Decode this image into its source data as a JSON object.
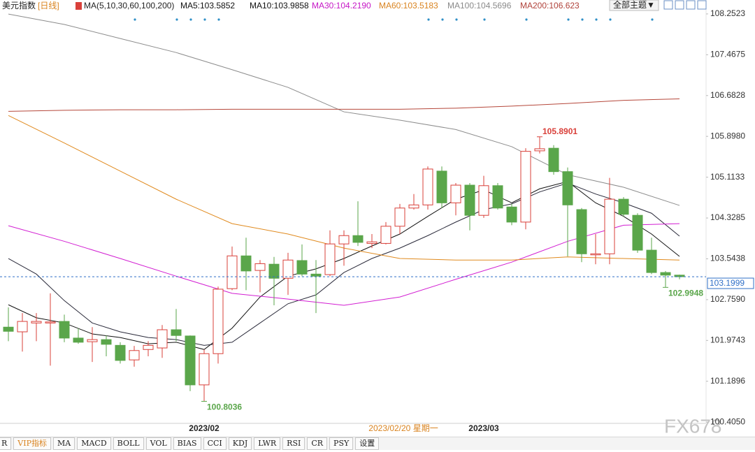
{
  "chart_data": {
    "type": "candlestick",
    "title": "美元指数",
    "subtitle": "[日线]",
    "ma_label": "MA(5,10,30,60,100,200)",
    "theme_button": "全部主题▼",
    "cursor_label": "2023/02/20 星期一",
    "watermark": "FX678",
    "categories": [
      null,
      null,
      null,
      null,
      null,
      null,
      null,
      null,
      null,
      null,
      null,
      null,
      null,
      null,
      "2023/02",
      null,
      null,
      null,
      null,
      null,
      null,
      null,
      null,
      null,
      null,
      null,
      null,
      null,
      null,
      null,
      null,
      null,
      null,
      null,
      "2023/03",
      null,
      null,
      null,
      null,
      null,
      null,
      null,
      null,
      null,
      null,
      null,
      null,
      null,
      null
    ],
    "open": [
      102.23,
      102.14,
      102.31,
      102.31,
      102.34,
      102.02,
      101.95,
      101.99,
      101.88,
      101.6,
      101.8,
      101.83,
      102.18,
      102.06,
      101.12,
      101.72,
      102.97,
      103.6,
      103.32,
      103.44,
      103.17,
      103.51,
      103.25,
      103.24,
      103.83,
      103.99,
      103.84,
      103.84,
      104.17,
      104.52,
      104.58,
      105.23,
      104.62,
      104.96,
      104.38,
      104.95,
      104.54,
      104.25,
      105.62,
      105.67,
      105.22,
      104.49,
      103.62,
      103.64,
      104.69,
      104.38,
      103.71,
      103.28,
      103.23
    ],
    "high": [
      102.61,
      102.5,
      102.5,
      102.88,
      102.47,
      102.21,
      102.23,
      102.07,
      101.94,
      101.87,
      101.96,
      102.27,
      102.58,
      102.07,
      101.8,
      103.01,
      103.78,
      103.95,
      103.52,
      103.58,
      103.66,
      103.82,
      103.52,
      104.09,
      104.09,
      104.65,
      104.02,
      104.25,
      104.6,
      104.79,
      105.32,
      105.32,
      105.0,
      105.0,
      105.14,
      105.0,
      104.6,
      105.67,
      105.8901,
      105.73,
      105.3,
      104.52,
      104.02,
      105.1,
      104.73,
      104.42,
      103.95,
      103.31,
      103.24
    ],
    "low": [
      101.96,
      101.76,
      101.96,
      101.49,
      101.94,
      101.91,
      101.56,
      101.67,
      101.53,
      101.47,
      101.67,
      101.64,
      101.96,
      101.0,
      100.8036,
      101.53,
      102.94,
      102.94,
      102.9,
      102.65,
      102.85,
      103.21,
      102.5,
      103.21,
      103.41,
      103.79,
      103.75,
      103.82,
      104.02,
      104.49,
      104.49,
      104.52,
      104.38,
      104.09,
      104.33,
      104.49,
      104.19,
      104.11,
      105.57,
      105.16,
      103.59,
      103.48,
      103.44,
      103.44,
      104.36,
      103.66,
      103.25,
      102.9948,
      103.15
    ],
    "close": [
      102.15,
      102.34,
      102.34,
      102.33,
      102.02,
      101.94,
      101.99,
      101.9,
      101.59,
      101.78,
      101.88,
      102.18,
      102.07,
      101.12,
      101.72,
      102.96,
      103.6,
      103.31,
      103.45,
      103.17,
      103.52,
      103.25,
      103.21,
      103.83,
      103.99,
      103.86,
      103.87,
      104.17,
      104.52,
      104.58,
      105.27,
      104.62,
      104.96,
      104.38,
      104.95,
      104.52,
      104.25,
      105.61,
      105.66,
      105.22,
      104.58,
      103.64,
      103.64,
      104.69,
      104.4,
      103.71,
      103.28,
      103.23,
      103.1999
    ],
    "up_color": "#d9403a",
    "down_color": "#5aa64a",
    "series": [
      {
        "name": "MA5:103.5852",
        "color": "#111111",
        "label_color": "#111111",
        "x": [
          0,
          2,
          4,
          6,
          8,
          10,
          12,
          14,
          16,
          18,
          20,
          22,
          24,
          26,
          28,
          30,
          32,
          34,
          36,
          38,
          40,
          42,
          44,
          46,
          48
        ],
        "values": [
          102.66,
          102.41,
          102.31,
          102.1,
          102.03,
          101.91,
          101.94,
          101.8,
          102.21,
          102.81,
          103.21,
          103.35,
          103.55,
          103.79,
          104.02,
          104.36,
          104.69,
          104.87,
          104.62,
          104.89,
          105.03,
          104.62,
          104.36,
          104.02,
          103.59
        ]
      },
      {
        "name": "MA10:103.9858",
        "color": "#2a2a3a",
        "label_color": "#111111",
        "x": [
          0,
          2,
          4,
          6,
          8,
          10,
          12,
          14,
          16,
          18,
          20,
          22,
          24,
          26,
          28,
          30,
          32,
          34,
          36,
          38,
          40,
          42,
          44,
          46,
          48
        ],
        "values": [
          103.55,
          103.25,
          102.74,
          102.31,
          102.14,
          102.03,
          101.99,
          101.88,
          101.94,
          102.31,
          102.68,
          102.85,
          103.28,
          103.55,
          103.75,
          103.99,
          104.25,
          104.49,
          104.6,
          104.83,
          105.0,
          104.79,
          104.62,
          104.42,
          103.98
        ]
      },
      {
        "name": "MA30:104.2190",
        "color": "#d21ed2",
        "label_color": "#c617c6",
        "x": [
          0,
          4,
          8,
          12,
          16,
          20,
          24,
          28,
          32,
          36,
          40,
          44,
          48
        ],
        "values": [
          104.18,
          103.88,
          103.55,
          103.21,
          102.88,
          102.77,
          102.65,
          102.81,
          103.15,
          103.48,
          103.88,
          104.19,
          104.22
        ]
      },
      {
        "name": "MA60:103.5183",
        "color": "#e08a1e",
        "label_color": "#d9831f",
        "x": [
          0,
          4,
          8,
          12,
          16,
          20,
          24,
          28,
          32,
          36,
          40,
          44,
          48
        ],
        "values": [
          106.3,
          105.77,
          105.23,
          104.69,
          104.22,
          104.02,
          103.75,
          103.55,
          103.52,
          103.52,
          103.58,
          103.55,
          103.52
        ]
      },
      {
        "name": "MA100:104.5696",
        "color": "#8c8c8c",
        "label_color": "#8a8a8a",
        "x": [
          0,
          4,
          8,
          12,
          16,
          20,
          24,
          28,
          32,
          36,
          40,
          44,
          48
        ],
        "values": [
          108.25,
          108.05,
          107.78,
          107.51,
          107.18,
          106.84,
          106.37,
          106.21,
          106.03,
          105.7,
          105.16,
          104.92,
          104.57
        ]
      },
      {
        "name": "MA200:106.623",
        "color": "#b5473a",
        "label_color": "#b0423a",
        "x": [
          0,
          4,
          8,
          12,
          16,
          20,
          24,
          28,
          32,
          36,
          40,
          44,
          48
        ],
        "values": [
          106.38,
          106.4,
          106.41,
          106.41,
          106.42,
          106.42,
          106.42,
          106.42,
          106.44,
          106.48,
          106.53,
          106.59,
          106.62
        ]
      }
    ],
    "annotations": [
      {
        "value": 105.8901,
        "index": 38,
        "color": "#d9403a"
      },
      {
        "value": 100.8036,
        "index": 14,
        "color": "#5aa64a"
      },
      {
        "value": 102.9948,
        "index": 47,
        "color": "#5aa64a"
      }
    ],
    "last_price": {
      "value": 103.1999,
      "color": "#2f6fc7"
    },
    "ylim": [
      100.38,
      108.52
    ],
    "yticks": [
      108.2523,
      107.4675,
      106.6828,
      {
        "value": 105.898,
        "label": "105.8980"
      },
      105.1133,
      104.3285,
      103.5438,
      {
        "value": 102.759,
        "label": "102.7590"
      },
      101.9743,
      101.1896,
      {
        "value": 100.405,
        "label": "100.4050"
      }
    ],
    "grid": false
  },
  "toolbar": [
    "R",
    "VIP指标",
    "MA",
    "MACD",
    "BOLL",
    "VOL",
    "BIAS",
    "CCI",
    "KDJ",
    "LWR",
    "RSI",
    "CR",
    "PSY",
    "设置"
  ]
}
